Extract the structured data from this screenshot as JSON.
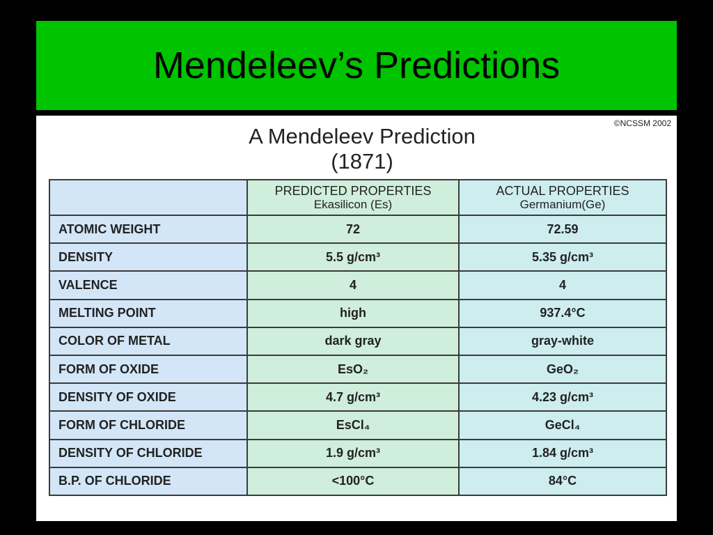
{
  "header": {
    "title": "Mendeleev’s Predictions"
  },
  "figure": {
    "copyright": "©NCSSM 2002",
    "title": "A Mendeleev Prediction",
    "subtitle": "(1871)",
    "table": {
      "columns": [
        {
          "title": "PREDICTED PROPERTIES",
          "subtitle": "Ekasilicon (Es)"
        },
        {
          "title": "ACTUAL PROPERTIES",
          "subtitle": "Germanium(Ge)"
        }
      ],
      "rows": [
        [
          "ATOMIC WEIGHT",
          "72",
          "72.59"
        ],
        [
          "DENSITY",
          "5.5 g/cm³",
          "5.35 g/cm³"
        ],
        [
          "VALENCE",
          "4",
          "4"
        ],
        [
          "MELTING POINT",
          "high",
          "937.4°C"
        ],
        [
          "COLOR OF METAL",
          "dark gray",
          "gray-white"
        ],
        [
          "FORM OF OXIDE",
          "EsO₂",
          "GeO₂"
        ],
        [
          "DENSITY OF OXIDE",
          "4.7 g/cm³",
          "4.23 g/cm³"
        ],
        [
          "FORM OF CHLORIDE",
          "EsCl₄",
          "GeCl₄"
        ],
        [
          "DENSITY OF CHLORIDE",
          "1.9 g/cm³",
          "1.84 g/cm³"
        ],
        [
          "B.P. OF CHLORIDE",
          "<100°C",
          "84°C"
        ]
      ]
    }
  }
}
